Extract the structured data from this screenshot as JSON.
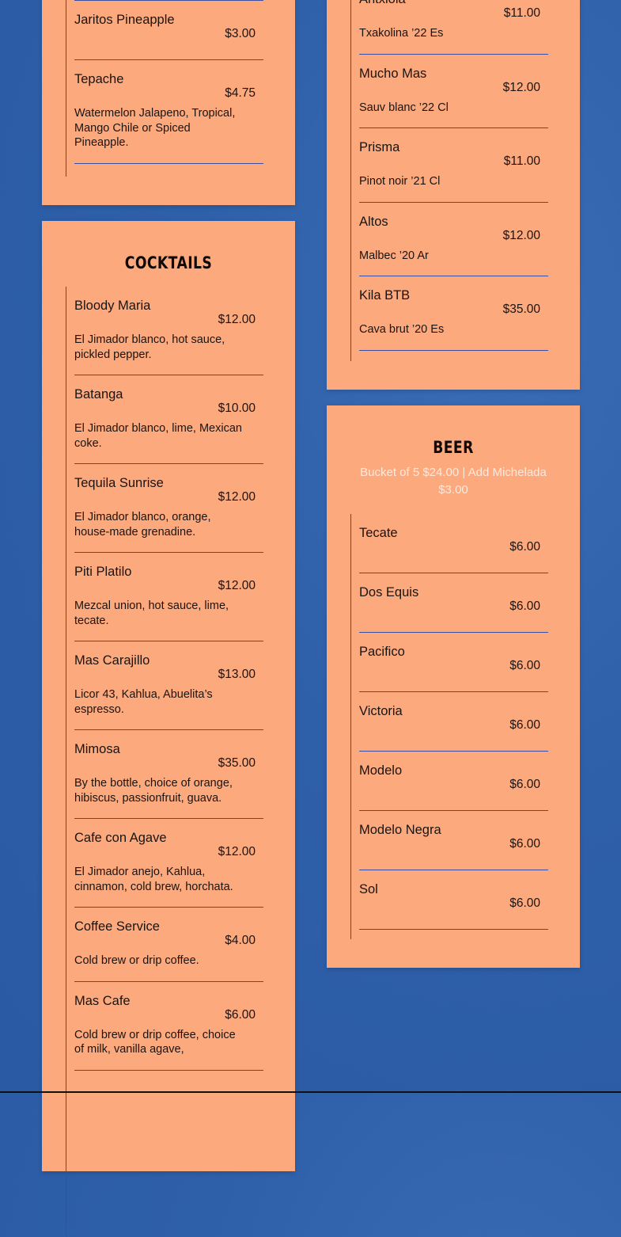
{
  "colors": {
    "background": "#2e5fa9",
    "card": "#fda97e",
    "divider": "#3b4f9a",
    "subtitle": "#fde9db"
  },
  "soft_drinks": {
    "items": [
      {
        "name": "Jaritos Pineapple",
        "price": "$3.00",
        "desc": ""
      },
      {
        "name": "Tepache",
        "price": "$4.75",
        "desc": "Watermelon Jalapeno, Tropical, Mango Chile or Spiced Pineapple."
      }
    ]
  },
  "wine": {
    "items": [
      {
        "name": "Antxiola",
        "price": "$11.00",
        "desc": "Txakolina ’22 Es"
      },
      {
        "name": "Mucho Mas",
        "price": "$12.00",
        "desc": "Sauv blanc ’22 Cl"
      },
      {
        "name": "Prisma",
        "price": "$11.00",
        "desc": "Pinot noir ’21 Cl"
      },
      {
        "name": "Altos",
        "price": "$12.00",
        "desc": "Malbec ’20 Ar"
      },
      {
        "name": "Kila BTB",
        "price": "$35.00",
        "desc": "Cava brut ’20 Es"
      }
    ]
  },
  "cocktails": {
    "title": "COCKTAILS",
    "items": [
      {
        "name": "Bloody Maria",
        "price": "$12.00",
        "desc": "El Jimador blanco, hot sauce, pickled pepper."
      },
      {
        "name": "Batanga",
        "price": "$10.00",
        "desc": "El Jimador blanco, lime, Mexican coke."
      },
      {
        "name": "Tequila Sunrise",
        "price": "$12.00",
        "desc": "El Jimador blanco, orange, house-made grenadine."
      },
      {
        "name": "Piti Platilo",
        "price": "$12.00",
        "desc": "Mezcal union, hot sauce, lime, tecate."
      },
      {
        "name": "Mas Carajillo",
        "price": "$13.00",
        "desc": "Licor 43, Kahlua, Abuelita’s espresso."
      },
      {
        "name": "Mimosa",
        "price": "$35.00",
        "desc": "By the bottle, choice of orange, hibiscus, passionfruit, guava."
      },
      {
        "name": "Cafe con Agave",
        "price": "$12.00",
        "desc": "El Jimador anejo, Kahlua, cinnamon, cold brew, horchata."
      },
      {
        "name": "Coffee Service",
        "price": "$4.00",
        "desc": "Cold brew or drip coffee."
      },
      {
        "name": "Mas Cafe",
        "price": "$6.00",
        "desc": "Cold brew or drip coffee, choice of milk, vanilla agave,"
      }
    ]
  },
  "beer": {
    "title": "BEER",
    "subtitle": "Bucket of 5 $24.00 | Add Michelada $3.00",
    "items": [
      {
        "name": "Tecate",
        "price": "$6.00",
        "desc": ""
      },
      {
        "name": "Dos Equis",
        "price": "$6.00",
        "desc": ""
      },
      {
        "name": "Pacifico",
        "price": "$6.00",
        "desc": ""
      },
      {
        "name": "Victoria",
        "price": "$6.00",
        "desc": ""
      },
      {
        "name": "Modelo",
        "price": "$6.00",
        "desc": ""
      },
      {
        "name": "Modelo Negra",
        "price": "$6.00",
        "desc": ""
      },
      {
        "name": "Sol",
        "price": "$6.00",
        "desc": ""
      }
    ]
  }
}
